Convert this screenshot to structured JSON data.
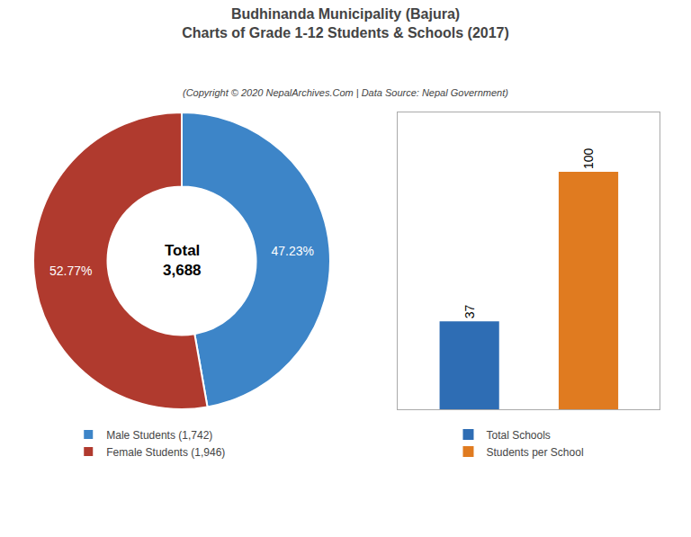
{
  "title": [
    "Budhinanda Municipality (Bajura)",
    "Charts of Grade 1-12 Students & Schools (2017)"
  ],
  "subtitle": "(Copyright © 2020 NepalArchives.Com | Data Source: Nepal Government)",
  "chart_data": [
    {
      "type": "pie",
      "categories": [
        "Male Students (1,742)",
        "Female Students (1,946)"
      ],
      "values": [
        47.23,
        52.77
      ],
      "value_labels": [
        "47.23%",
        "52.77%"
      ],
      "colors": [
        "#3d85c8",
        "#b03a2e"
      ],
      "data_labels": true,
      "annotations": [
        "Total",
        "3,688"
      ],
      "legend": "bottom"
    },
    {
      "type": "bar",
      "categories": [
        "Total Schools",
        "Students per School"
      ],
      "values": [
        37,
        100
      ],
      "colors": [
        "#2e6db4",
        "#e07b20"
      ],
      "data_labels": true,
      "tick_labels": false,
      "ylim": [
        0,
        125
      ],
      "yticks": [],
      "legend": "bottom"
    }
  ]
}
